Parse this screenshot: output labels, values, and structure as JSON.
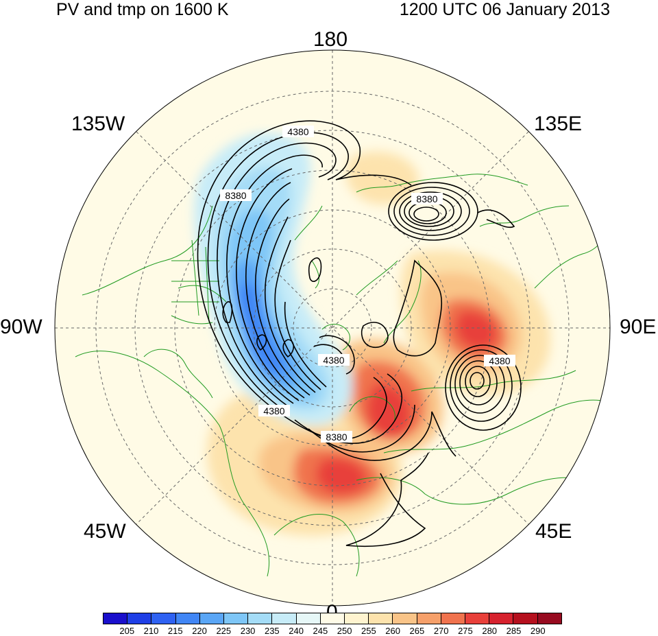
{
  "title_left": "PV and tmp on 1600 K",
  "title_right": "1200 UTC 06 January 2013",
  "longitude_labels": {
    "lon_180": "180",
    "lon_135w": "135W",
    "lon_135e": "135E",
    "lon_90w": "90W",
    "lon_90e": "90E",
    "lon_45w": "45W",
    "lon_45e": "45E",
    "lon_0": "0"
  },
  "contour_labels": [
    "4380",
    "8380",
    "8380",
    "4380",
    "4380",
    "8380",
    "4380"
  ],
  "colorbar": {
    "labels": [
      "205",
      "210",
      "215",
      "220",
      "225",
      "230",
      "235",
      "240",
      "245",
      "250",
      "255",
      "260",
      "265",
      "270",
      "275",
      "280",
      "285",
      "290"
    ],
    "colors": [
      "#1a0fcc",
      "#1f3fe6",
      "#2f62f2",
      "#4186f5",
      "#5aa6f6",
      "#7ec6f7",
      "#a4dcf7",
      "#c7ecf8",
      "#e6f7f7",
      "#fffbe7",
      "#fff4d0",
      "#fde3ad",
      "#f9c488",
      "#f6a06a",
      "#f0734e",
      "#e8403a",
      "#d6222e",
      "#b5101e",
      "#970b20"
    ]
  },
  "field_colors": {
    "background": "#fffbe6",
    "coast": "#1f9a1f",
    "contour": "#000000",
    "grid": "#555555"
  }
}
